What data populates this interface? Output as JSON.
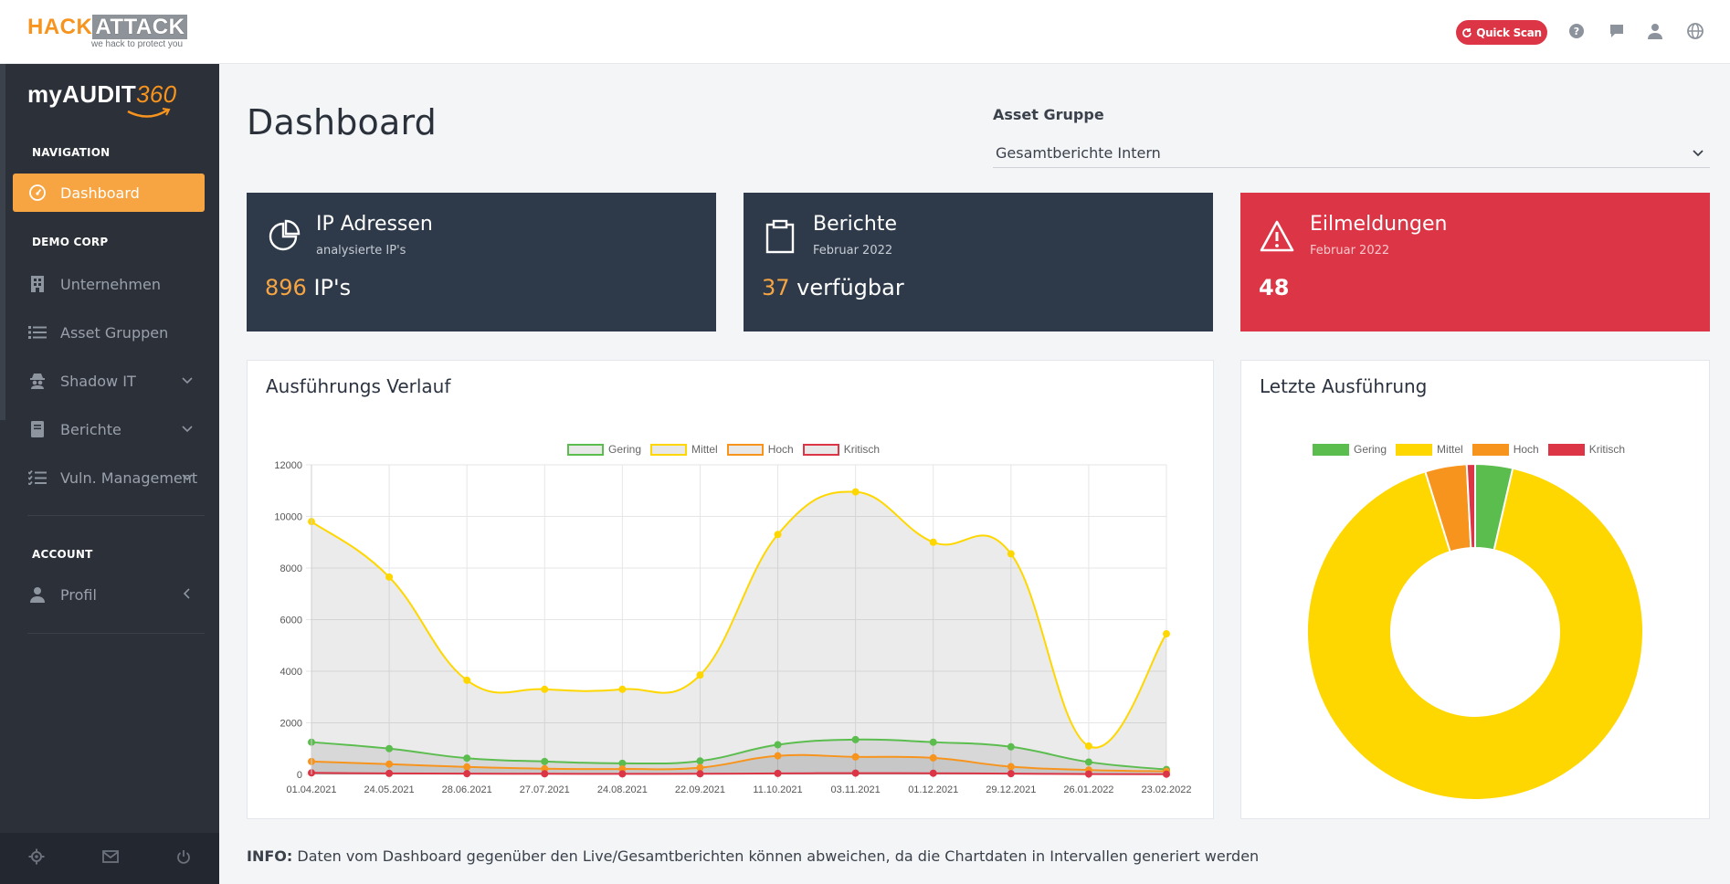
{
  "brand": {
    "part1": "HACK",
    "part2": "ATTACK",
    "tagline": "we hack to protect you"
  },
  "topbar": {
    "quick_scan": "Quick Scan"
  },
  "sidebar": {
    "logo_text": "myAUDIT",
    "logo_num": "360",
    "nav_header": "NAVIGATION",
    "dashboard": "Dashboard",
    "org_header": "DEMO CORP",
    "items": [
      "Unternehmen",
      "Asset Gruppen",
      "Shadow IT",
      "Berichte",
      "Vuln. Management"
    ],
    "account_header": "ACCOUNT",
    "profile": "Profil"
  },
  "main": {
    "title": "Dashboard",
    "asset_label": "Asset Gruppe",
    "asset_value": "Gesamtberichte Intern",
    "info_prefix": "INFO:",
    "info_text": " Daten vom Dashboard gegenüber den Live/Gesamtberichten können abweichen, da die Chartdaten in Intervallen generiert werden"
  },
  "cards": [
    {
      "title": "IP Adressen",
      "sub": "analysierte IP's",
      "num": "896",
      "unit": " IP's"
    },
    {
      "title": "Berichte",
      "sub": "Februar 2022",
      "num": "37",
      "unit": " verfügbar"
    },
    {
      "title": "Eilmeldungen",
      "sub": "Februar 2022",
      "value": "48"
    }
  ],
  "colors": {
    "gering": "#5cbd4f",
    "mittel": "#ffd700",
    "hoch": "#f7941e",
    "kritisch": "#dc3545"
  },
  "chart_data": [
    {
      "type": "area",
      "title": "Ausführungs Verlauf",
      "x": [
        "01.04.2021",
        "24.05.2021",
        "28.06.2021",
        "27.07.2021",
        "24.08.2021",
        "22.09.2021",
        "11.10.2021",
        "03.11.2021",
        "01.12.2021",
        "29.12.2021",
        "26.01.2022",
        "23.02.2022"
      ],
      "ylim": [
        0,
        12000
      ],
      "yticks": [
        0,
        2000,
        4000,
        6000,
        8000,
        10000,
        12000
      ],
      "grid": true,
      "legend": "top",
      "series": [
        {
          "name": "Gering",
          "values": [
            1250,
            1000,
            630,
            500,
            430,
            520,
            1150,
            1350,
            1250,
            1070,
            480,
            190
          ]
        },
        {
          "name": "Mittel",
          "values": [
            9800,
            7650,
            3650,
            3300,
            3300,
            3850,
            9300,
            10950,
            9000,
            8550,
            1100,
            5450
          ]
        },
        {
          "name": "Hoch",
          "values": [
            500,
            400,
            290,
            220,
            210,
            260,
            720,
            680,
            640,
            300,
            170,
            120
          ]
        },
        {
          "name": "Kritisch",
          "values": [
            60,
            40,
            30,
            25,
            20,
            25,
            40,
            50,
            45,
            30,
            15,
            10
          ]
        }
      ]
    },
    {
      "type": "pie",
      "title": "Letzte Ausführung",
      "legend": "top",
      "labels": [
        "Gering",
        "Mittel",
        "Hoch",
        "Kritisch"
      ],
      "values": [
        3.6,
        91.6,
        4.0,
        0.8
      ]
    }
  ]
}
